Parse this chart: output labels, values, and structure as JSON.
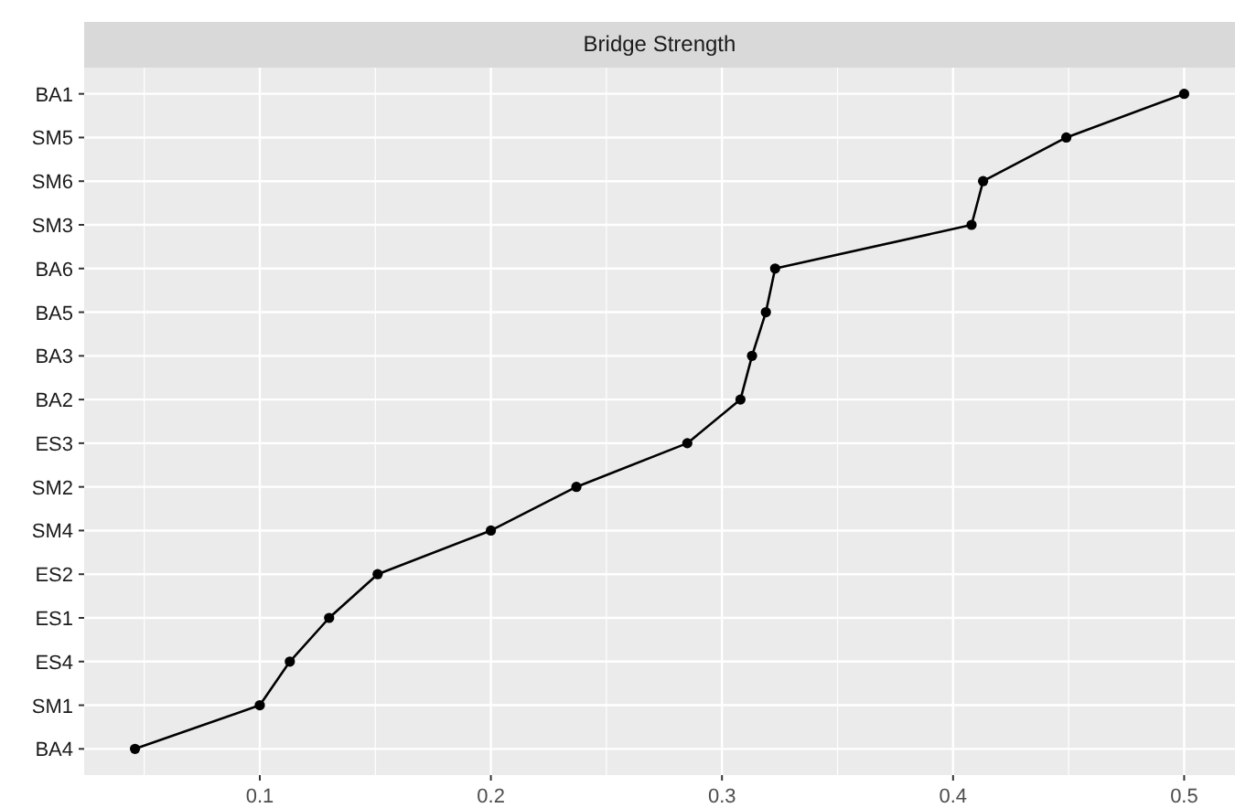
{
  "chart_data": {
    "type": "line",
    "orientation": "horizontal",
    "title": "Bridge Strength",
    "categories": [
      "BA1",
      "SM5",
      "SM6",
      "SM3",
      "BA6",
      "BA5",
      "BA3",
      "BA2",
      "ES3",
      "SM2",
      "SM4",
      "ES2",
      "ES1",
      "ES4",
      "SM1",
      "BA4"
    ],
    "series": [
      {
        "color": "#000000",
        "values": [
          0.5,
          0.449,
          0.413,
          0.408,
          0.323,
          0.319,
          0.313,
          0.308,
          0.285,
          0.237,
          0.2,
          0.151,
          0.13,
          0.113,
          0.1,
          0.046
        ]
      }
    ],
    "xlim": [
      0.024,
      0.522
    ],
    "xticks": [
      0.1,
      0.2,
      0.3,
      0.4,
      0.5
    ],
    "grid": true,
    "marker": "circle",
    "line_style": "solid"
  }
}
